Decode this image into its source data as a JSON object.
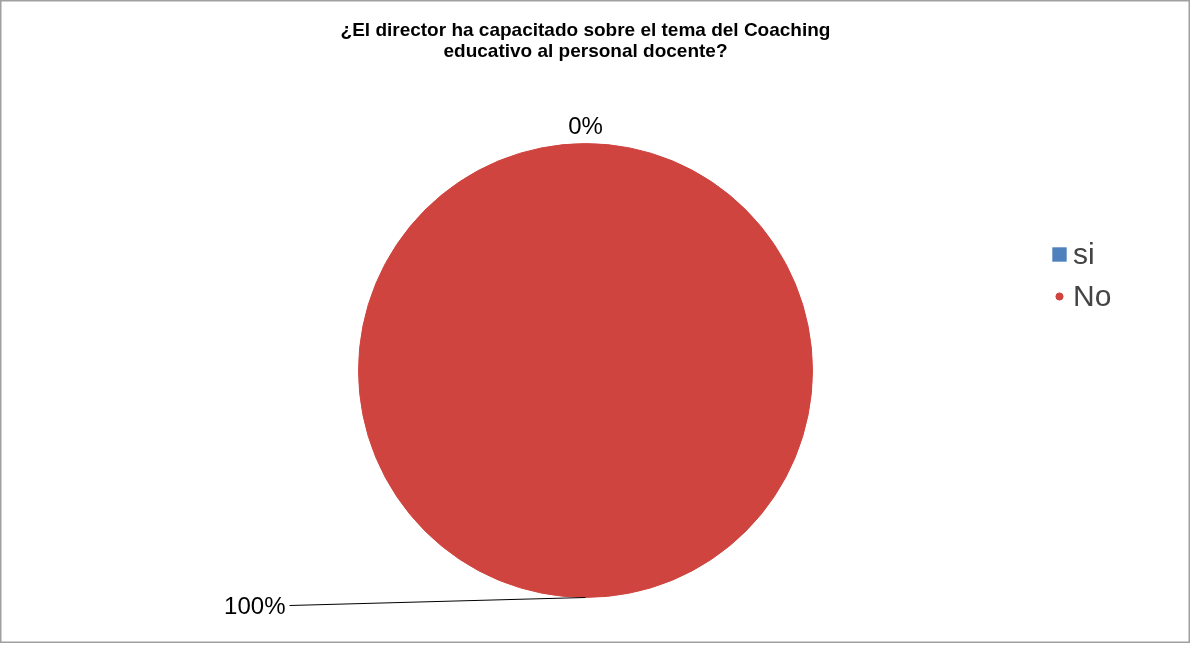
{
  "chart_data": {
    "type": "pie",
    "title": "¿El director ha capacitado sobre el tema del Coaching\neducativo al personal docente?",
    "categories": [
      "si",
      "No"
    ],
    "values": [
      0,
      100
    ],
    "colors": [
      "#4f81bd",
      "#d0443f"
    ],
    "value_labels": [
      "0%",
      "100%"
    ],
    "legend": "right"
  }
}
